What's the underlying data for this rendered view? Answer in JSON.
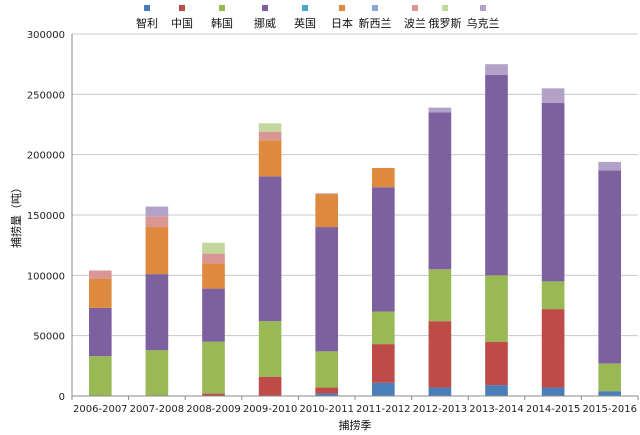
{
  "chart_data": {
    "type": "bar",
    "stacked": true,
    "xlabel": "捕捞季",
    "ylabel": "捕捞量（吨）",
    "ylim": [
      0,
      300000
    ],
    "yticks": [
      "0",
      "50000",
      "100000",
      "150000",
      "200000",
      "250000",
      "300000"
    ],
    "grid": true,
    "legend_position": "top",
    "categories": [
      "2006-2007",
      "2007-2008",
      "2008-2009",
      "2009-2010",
      "2010-2011",
      "2011-2012",
      "2012-2013",
      "2013-2014",
      "2014-2015",
      "2015-2016"
    ],
    "series": [
      {
        "name": "智利",
        "color": "#4a7ebb",
        "values": [
          0,
          0,
          0,
          0,
          2000,
          11000,
          7000,
          9000,
          7000,
          4000
        ]
      },
      {
        "name": "中国",
        "color": "#be4b48",
        "values": [
          0,
          0,
          2000,
          16000,
          5000,
          32000,
          55000,
          36000,
          65000,
          0
        ]
      },
      {
        "name": "韩国",
        "color": "#98b954",
        "values": [
          33000,
          38000,
          43000,
          46000,
          30000,
          27000,
          43000,
          55000,
          23000,
          23000
        ]
      },
      {
        "name": "挪威",
        "color": "#7d60a0",
        "values": [
          40000,
          63000,
          44000,
          120000,
          103000,
          103000,
          130000,
          166000,
          148000,
          160000
        ]
      },
      {
        "name": "英国",
        "color": "#46aac5",
        "values": [
          0,
          0,
          0,
          0,
          0,
          0,
          0,
          0,
          0,
          0
        ]
      },
      {
        "name": "日本",
        "color": "#dd8a3e",
        "values": [
          24000,
          39000,
          21000,
          30000,
          27000,
          16000,
          0,
          0,
          0,
          0
        ]
      },
      {
        "name": "新西兰",
        "color": "#8ea5d3",
        "values": [
          0,
          0,
          0,
          0,
          0,
          0,
          0,
          0,
          0,
          0
        ]
      },
      {
        "name": "波兰",
        "color": "#d99694",
        "values": [
          7000,
          9000,
          8000,
          7000,
          1000,
          0,
          0,
          0,
          0,
          0
        ]
      },
      {
        "name": "俄罗斯",
        "color": "#c3d69b",
        "values": [
          0,
          0,
          9000,
          7000,
          0,
          0,
          0,
          0,
          0,
          0
        ]
      },
      {
        "name": "乌克兰",
        "color": "#b3a2c7",
        "values": [
          0,
          8000,
          0,
          0,
          0,
          0,
          4000,
          9000,
          12000,
          7000
        ]
      }
    ]
  }
}
